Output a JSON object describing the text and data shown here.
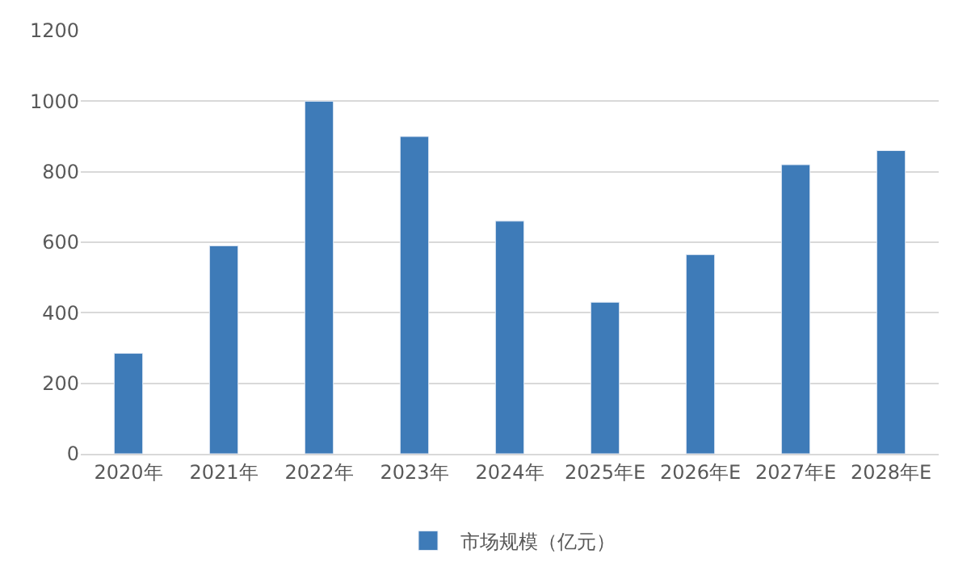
{
  "chart_data": {
    "type": "bar",
    "categories": [
      "2020年",
      "2021年",
      "2022年",
      "2023年",
      "2024年",
      "2025年E",
      "2026年E",
      "2027年E",
      "2028年E"
    ],
    "series": [
      {
        "name": "市场规模（亿元）",
        "color": "#3e7bb8",
        "values": [
          285,
          590,
          1000,
          900,
          660,
          430,
          565,
          820,
          860
        ]
      }
    ],
    "ylim": [
      0,
      1200
    ],
    "yticks": [
      0,
      200,
      400,
      600,
      800,
      1000,
      1200
    ],
    "grid": "y",
    "legend": "bottom"
  }
}
